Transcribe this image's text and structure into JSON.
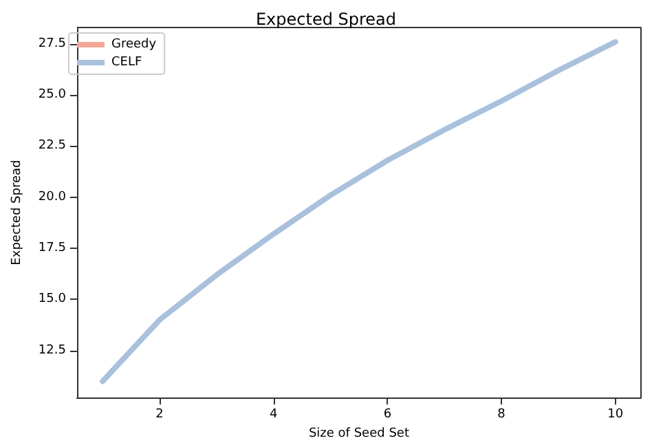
{
  "chart_data": {
    "type": "line",
    "title": "Expected Spread",
    "xlabel": "Size of Seed Set",
    "ylabel": "Expected Spread",
    "x": [
      1,
      2,
      3,
      4,
      5,
      6,
      7,
      8,
      9,
      10
    ],
    "series": [
      {
        "name": "Greedy",
        "color": "#f4a896",
        "values": [
          null,
          null,
          null,
          null,
          null,
          null,
          null,
          null,
          null,
          null
        ]
      },
      {
        "name": "CELF",
        "color": "#a9c1dc",
        "values": [
          11.0,
          14.0,
          16.2,
          18.2,
          20.1,
          21.8,
          23.3,
          24.7,
          26.2,
          27.6
        ]
      }
    ],
    "xlim": [
      0.55,
      10.45
    ],
    "xticks": [
      2,
      4,
      6,
      8,
      10
    ],
    "ylim": [
      10.2,
      28.3
    ],
    "yticks": [
      12.5,
      {
        "value": 15,
        "label": "15.0"
      },
      17.5,
      {
        "value": 20,
        "label": "20.0"
      },
      22.5,
      {
        "value": 25,
        "label": "25.0"
      },
      27.5
    ],
    "legend": "top left",
    "grid": false,
    "marker": "none",
    "line_style": "solid"
  }
}
